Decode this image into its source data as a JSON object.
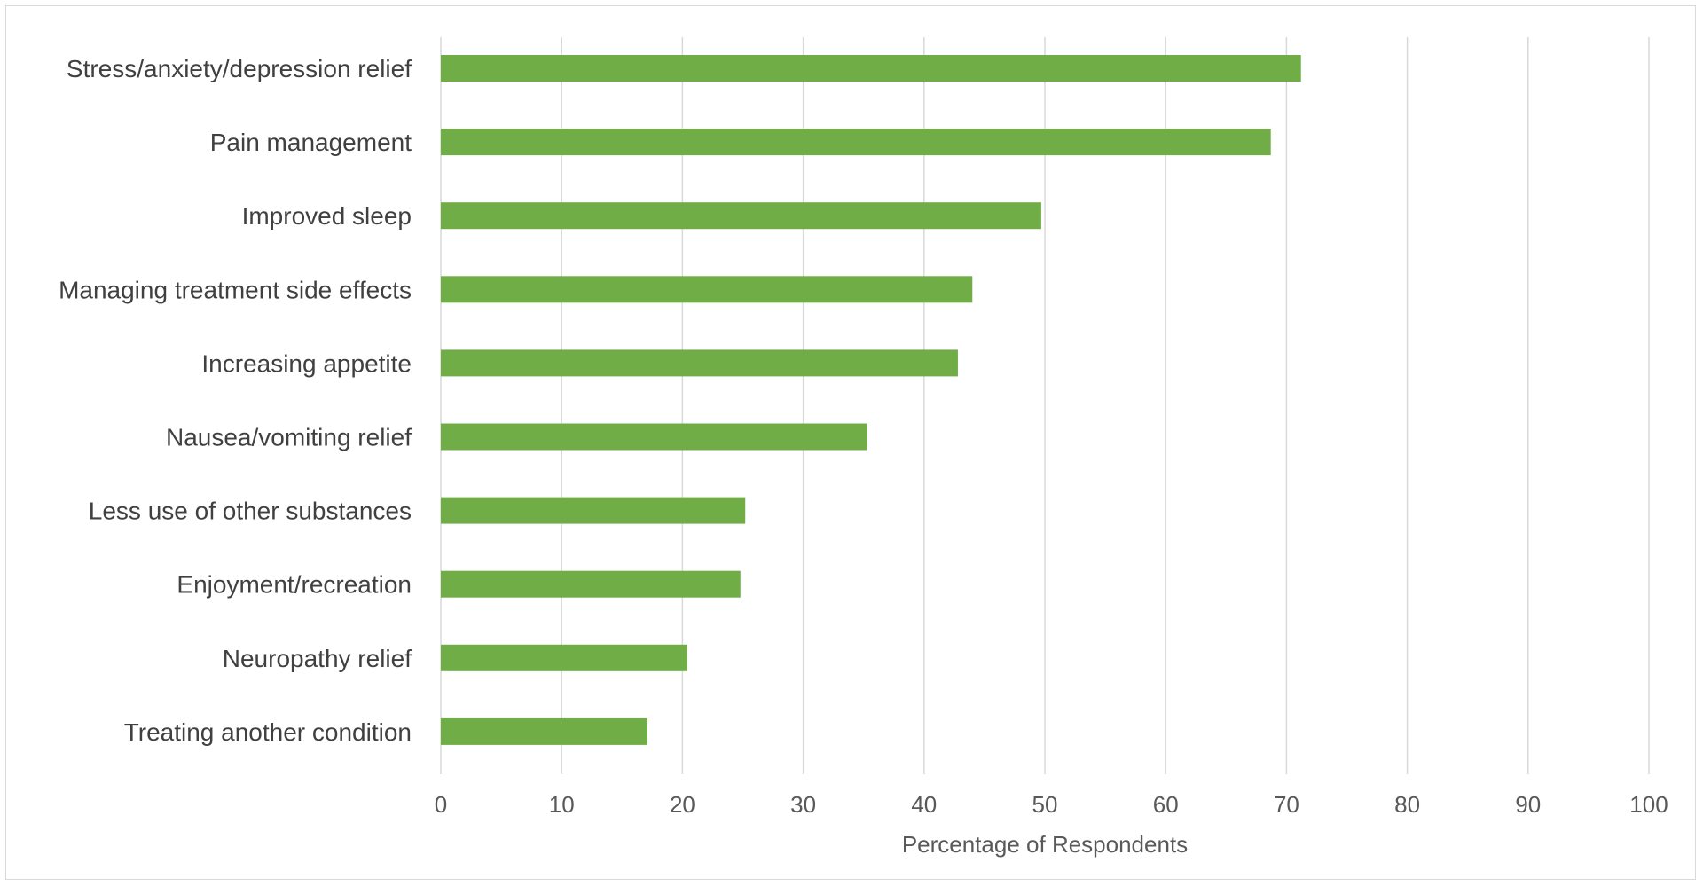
{
  "chart_data": {
    "type": "bar",
    "orientation": "horizontal",
    "title": "",
    "xlabel": "Percentage of Respondents",
    "ylabel": "",
    "xlim": [
      0,
      100
    ],
    "xticks": [
      0,
      10,
      20,
      30,
      40,
      50,
      60,
      70,
      80,
      90,
      100
    ],
    "grid": "vertical",
    "legend": "none",
    "bar_color": "#70AD47",
    "categories": [
      "Stress/anxiety/depression relief",
      "Pain management",
      "Improved sleep",
      "Managing treatment side effects",
      "Increasing appetite",
      "Nausea/vomiting relief",
      "Less use of other substances",
      "Enjoyment/recreation",
      "Neuropathy relief",
      "Treating another condition"
    ],
    "values": [
      71.2,
      68.7,
      49.7,
      44.0,
      42.8,
      35.3,
      25.2,
      24.8,
      20.4,
      17.1
    ]
  }
}
